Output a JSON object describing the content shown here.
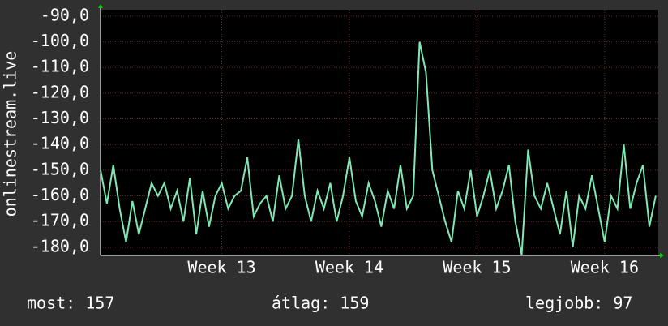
{
  "chart_data": {
    "type": "line",
    "y_label": "onlinestream.live",
    "x": [
      12.05,
      12.1,
      12.15,
      12.2,
      12.25,
      12.3,
      12.35,
      12.4,
      12.45,
      12.5,
      12.55,
      12.6,
      12.65,
      12.7,
      12.75,
      12.8,
      12.85,
      12.9,
      12.95,
      13.0,
      13.05,
      13.1,
      13.15,
      13.2,
      13.25,
      13.3,
      13.35,
      13.4,
      13.45,
      13.5,
      13.55,
      13.6,
      13.65,
      13.7,
      13.75,
      13.8,
      13.85,
      13.9,
      13.95,
      14.0,
      14.05,
      14.1,
      14.15,
      14.2,
      14.25,
      14.3,
      14.35,
      14.4,
      14.45,
      14.5,
      14.55,
      14.6,
      14.65,
      14.7,
      14.75,
      14.8,
      14.85,
      14.9,
      14.95,
      15.0,
      15.05,
      15.1,
      15.15,
      15.2,
      15.25,
      15.3,
      15.35,
      15.4,
      15.45,
      15.5,
      15.55,
      15.6,
      15.65,
      15.7,
      15.75,
      15.8,
      15.85,
      15.9,
      15.95,
      16.0,
      16.05,
      16.1,
      16.15,
      16.2,
      16.25,
      16.3,
      16.35,
      16.4
    ],
    "series": [
      {
        "color": "#80e8b4",
        "values": [
          -150,
          -163,
          -148,
          -165,
          -178,
          -162,
          -175,
          -165,
          -155,
          -160,
          -155,
          -165,
          -158,
          -170,
          -153,
          -175,
          -158,
          -172,
          -160,
          -155,
          -165,
          -160,
          -158,
          -145,
          -168,
          -163,
          -160,
          -170,
          -152,
          -165,
          -160,
          -138,
          -160,
          -170,
          -158,
          -165,
          -155,
          -170,
          -160,
          -145,
          -162,
          -168,
          -155,
          -162,
          -172,
          -158,
          -165,
          -148,
          -165,
          -160,
          -100,
          -112,
          -150,
          -160,
          -170,
          -178,
          -158,
          -165,
          -150,
          -168,
          -160,
          -150,
          -165,
          -158,
          -148,
          -170,
          -183,
          -142,
          -160,
          -165,
          -155,
          -165,
          -175,
          -158,
          -180,
          -160,
          -165,
          -152,
          -165,
          -178,
          -160,
          -165,
          -140,
          -165,
          -155,
          -148,
          -172,
          -160
        ]
      }
    ],
    "xlim": [
      12.05,
      16.42
    ],
    "xticks": [
      {
        "value": 13,
        "label": "Week 13"
      },
      {
        "value": 14,
        "label": "Week 14"
      },
      {
        "value": 15,
        "label": "Week 15"
      },
      {
        "value": 16,
        "label": "Week 16"
      }
    ],
    "ylim": [
      -183.2,
      -87.5
    ],
    "yticks": [
      {
        "value": -90,
        "label": "-90,0"
      },
      {
        "value": -100,
        "label": "-100,0"
      },
      {
        "value": -110,
        "label": "-110,0"
      },
      {
        "value": -120,
        "label": "-120,0"
      },
      {
        "value": -130,
        "label": "-130,0"
      },
      {
        "value": -140,
        "label": "-140,0"
      },
      {
        "value": -150,
        "label": "-150,0"
      },
      {
        "value": -160,
        "label": "-160,0"
      },
      {
        "value": -170,
        "label": "-170,0"
      },
      {
        "value": -180,
        "label": "-180,0"
      }
    ],
    "grid": true,
    "footer": [
      "most: 157",
      "átlag: 159",
      "legjobb: 97"
    ]
  }
}
